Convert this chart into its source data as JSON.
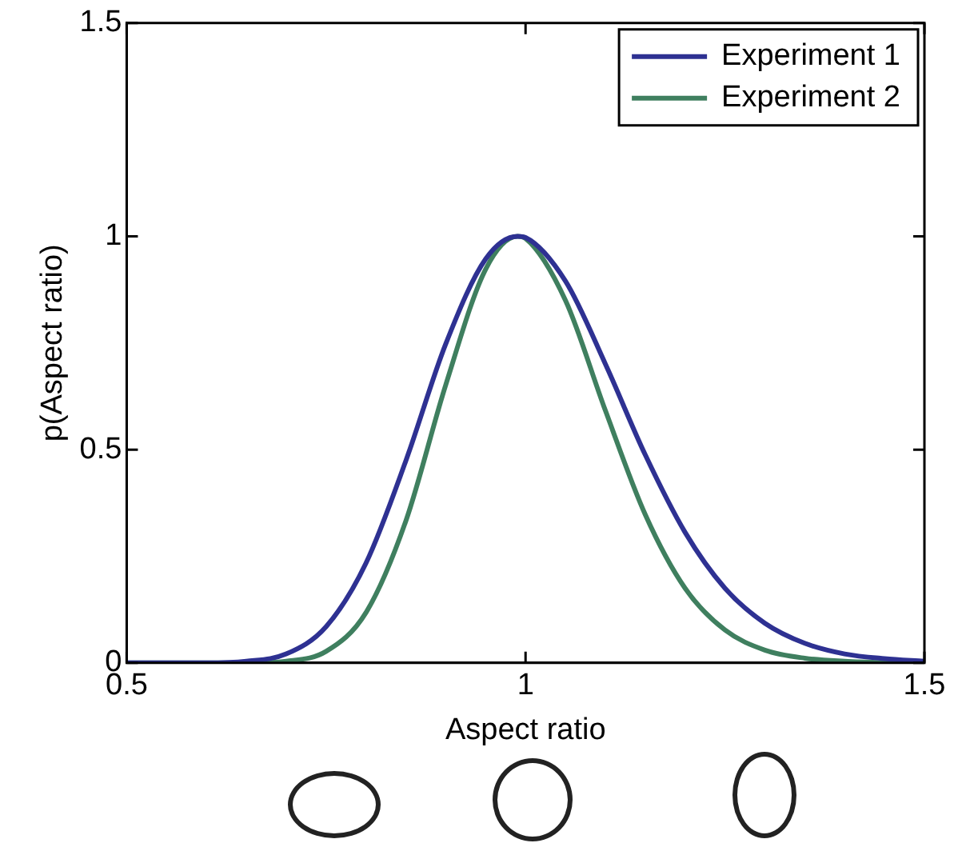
{
  "chart_data": {
    "type": "line",
    "xlabel": "Aspect ratio",
    "ylabel": "p(Aspect ratio)",
    "xlim": [
      0.5,
      1.5
    ],
    "xticks": [
      0.5,
      1,
      1.5
    ],
    "ylim": [
      0,
      1.5
    ],
    "yticks": [
      0,
      0.5,
      1,
      1.5
    ],
    "grid": false,
    "legend": "top right",
    "marker": "none",
    "line_style": "solid",
    "series": [
      {
        "name": "Experiment 1",
        "color": "#2e3192",
        "x": [
          0.5,
          0.6,
          0.65,
          0.7,
          0.75,
          0.8,
          0.85,
          0.9,
          0.95,
          0.99,
          1.0,
          1.05,
          1.1,
          1.15,
          1.2,
          1.25,
          1.3,
          1.35,
          1.4,
          1.45,
          1.5
        ],
        "values": [
          0,
          0,
          0.004,
          0.021,
          0.085,
          0.234,
          0.474,
          0.748,
          0.947,
          1.0,
          0.997,
          0.895,
          0.701,
          0.488,
          0.306,
          0.175,
          0.093,
          0.046,
          0.021,
          0.01,
          0.004
        ]
      },
      {
        "name": "Experiment 2",
        "color": "#3f7f5f",
        "x": [
          0.5,
          0.6,
          0.65,
          0.7,
          0.75,
          0.8,
          0.85,
          0.9,
          0.95,
          0.99,
          1.0,
          1.05,
          1.1,
          1.15,
          1.2,
          1.25,
          1.3,
          1.35,
          1.4,
          1.45,
          1.5
        ],
        "values": [
          0,
          0,
          0,
          0.004,
          0.027,
          0.118,
          0.333,
          0.652,
          0.923,
          1.0,
          0.995,
          0.85,
          0.592,
          0.348,
          0.175,
          0.077,
          0.03,
          0.011,
          0.004,
          0.001,
          0
        ]
      }
    ]
  }
}
